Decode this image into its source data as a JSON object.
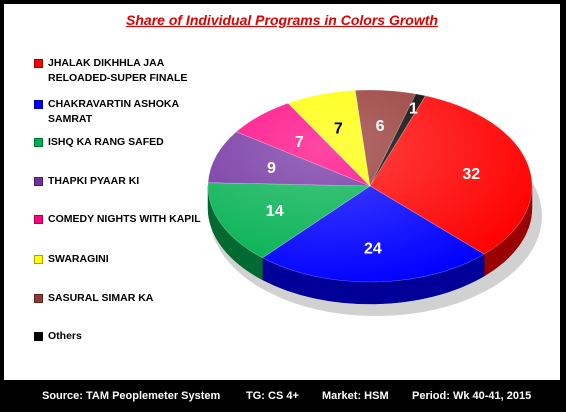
{
  "chart_data": {
    "type": "pie",
    "title": "Share of  Individual  Programs in Colors Growth",
    "categories": [
      "JHALAK DIKHHLA JAA RELOADED-SUPER FINALE",
      "CHAKRAVARTIN ASHOKA SAMRAT",
      "ISHQ KA RANG SAFED",
      "THAPKI PYAAR KI",
      "COMEDY NIGHTS WITH KAPIL",
      "SWARAGINI",
      "SASURAL SIMAR KA",
      "Others"
    ],
    "legend_lines": [
      [
        "JHALAK DIKHHLA JAA",
        "RELOADED-SUPER FINALE"
      ],
      [
        "CHAKRAVARTIN ASHOKA",
        "SAMRAT"
      ],
      [
        "ISHQ KA RANG SAFED"
      ],
      [
        "THAPKI PYAAR KI"
      ],
      [
        "COMEDY NIGHTS WITH KAPIL"
      ],
      [
        "SWARAGINI"
      ],
      [
        "SASURAL SIMAR KA"
      ],
      [
        "Others"
      ]
    ],
    "values": [
      32,
      24,
      14,
      9,
      7,
      7,
      6,
      1
    ],
    "colors": [
      "#ff0000",
      "#0000ff",
      "#00b050",
      "#7030a0",
      "#ff0080",
      "#ffff00",
      "#953735",
      "#000000"
    ],
    "label_colors": [
      "#ffffff",
      "#ffffff",
      "#ffffff",
      "#ffffff",
      "#ffffff",
      "#000000",
      "#ffffff",
      "#ffffff"
    ],
    "legend_position": "left"
  },
  "footer": {
    "source": "Source: TAM Peoplemeter System",
    "tg": "TG: CS 4+",
    "market": "Market: HSM",
    "period": "Period: Wk 40-41, 2015"
  }
}
